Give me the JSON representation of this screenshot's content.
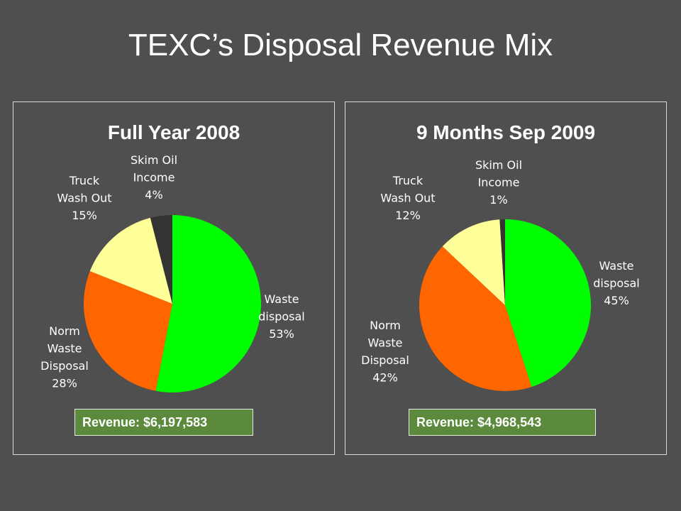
{
  "title": "TEXC’s Disposal Revenue Mix",
  "chart_data": [
    {
      "type": "pie",
      "title": "Full Year 2008",
      "slices": [
        {
          "label_lines": [
            "Waste",
            "disposal"
          ],
          "pct_label": "53%",
          "value": 53,
          "color": "#00ff00"
        },
        {
          "label_lines": [
            "Norm",
            "Waste",
            "Disposal"
          ],
          "pct_label": "28%",
          "value": 28,
          "color": "#ff6600"
        },
        {
          "label_lines": [
            "Truck",
            "Wash Out"
          ],
          "pct_label": "15%",
          "value": 15,
          "color": "#ffff99"
        },
        {
          "label_lines": [
            "Skim Oil",
            "Income"
          ],
          "pct_label": "4%",
          "value": 4,
          "color": "#333333"
        }
      ],
      "revenue_label": "Revenue:  $6,197,583"
    },
    {
      "type": "pie",
      "title": "9 Months Sep 2009",
      "slices": [
        {
          "label_lines": [
            "Waste",
            "disposal"
          ],
          "pct_label": "45%",
          "value": 45,
          "color": "#00ff00"
        },
        {
          "label_lines": [
            "Norm",
            "Waste",
            "Disposal"
          ],
          "pct_label": "42%",
          "value": 42,
          "color": "#ff6600"
        },
        {
          "label_lines": [
            "Truck",
            "Wash Out"
          ],
          "pct_label": "12%",
          "value": 12,
          "color": "#ffff99"
        },
        {
          "label_lines": [
            "Skim Oil",
            "Income"
          ],
          "pct_label": "1%",
          "value": 1,
          "color": "#333333"
        }
      ],
      "revenue_label": "Revenue:  $4,968,543"
    }
  ]
}
